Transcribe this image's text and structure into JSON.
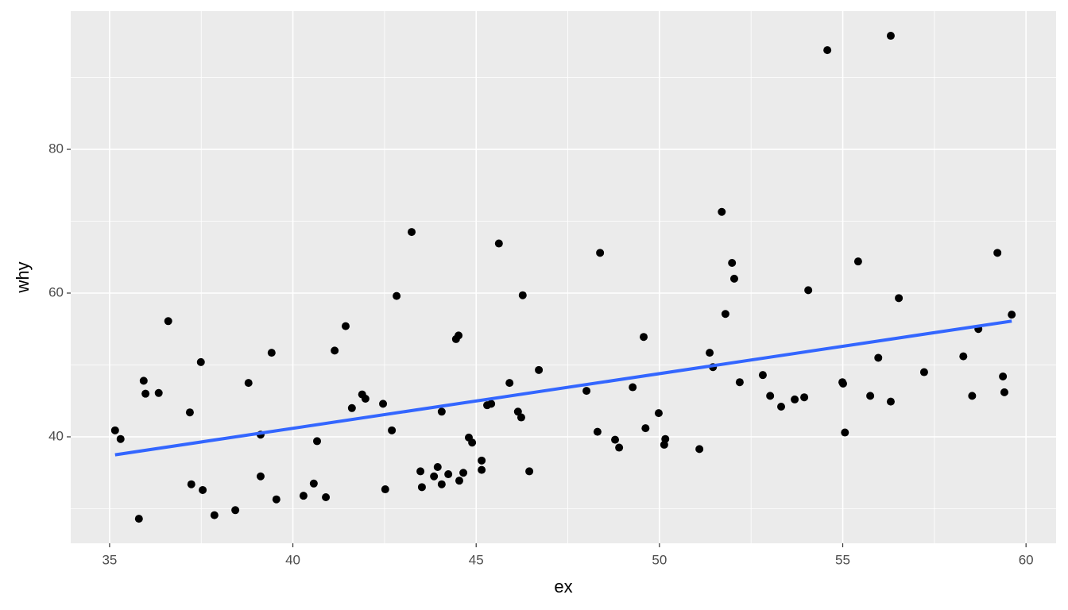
{
  "chart_data": {
    "type": "scatter",
    "xlabel": "ex",
    "ylabel": "why",
    "x": [
      35.15,
      35.3,
      35.8,
      35.93,
      35.98,
      36.34,
      36.6,
      37.19,
      37.23,
      37.49,
      37.54,
      37.86,
      38.43,
      38.79,
      39.12,
      39.12,
      39.42,
      39.55,
      40.29,
      40.57,
      40.66,
      40.9,
      41.14,
      41.44,
      41.61,
      41.89,
      41.98,
      42.46,
      42.52,
      42.7,
      42.83,
      43.24,
      43.48,
      43.52,
      43.85,
      43.95,
      44.06,
      44.06,
      44.24,
      44.45,
      44.52,
      44.54,
      44.65,
      44.8,
      44.89,
      45.15,
      45.15,
      45.3,
      45.41,
      45.62,
      45.91,
      46.14,
      46.23,
      46.27,
      46.45,
      46.71,
      48.01,
      48.31,
      48.38,
      48.79,
      48.9,
      49.27,
      49.57,
      49.62,
      49.98,
      50.16,
      50.13,
      51.09,
      51.37,
      51.46,
      51.7,
      51.8,
      51.98,
      52.04,
      52.19,
      52.82,
      53.02,
      53.32,
      53.69,
      53.95,
      54.06,
      54.58,
      54.99,
      55.01,
      55.06,
      55.42,
      55.75,
      55.97,
      56.31,
      56.31,
      56.53,
      57.22,
      58.29,
      58.53,
      58.7,
      59.22,
      59.37,
      59.41,
      59.61
    ],
    "values": [
      40.9,
      39.7,
      28.6,
      47.8,
      46.0,
      46.1,
      56.1,
      43.4,
      33.4,
      50.4,
      32.6,
      29.1,
      29.8,
      47.5,
      40.3,
      34.5,
      51.7,
      31.3,
      31.8,
      33.5,
      39.4,
      31.6,
      52.0,
      55.4,
      44.0,
      45.9,
      45.3,
      44.6,
      32.7,
      40.9,
      59.6,
      68.5,
      35.2,
      33.0,
      34.5,
      35.8,
      43.5,
      33.4,
      34.8,
      53.6,
      54.1,
      33.9,
      35.0,
      39.9,
      39.2,
      36.7,
      35.4,
      44.4,
      44.6,
      66.9,
      47.5,
      43.5,
      42.7,
      59.7,
      35.2,
      49.3,
      46.4,
      40.7,
      65.6,
      39.6,
      38.5,
      46.9,
      53.9,
      41.2,
      43.3,
      39.7,
      38.9,
      38.3,
      51.7,
      49.7,
      71.3,
      57.1,
      64.2,
      62.0,
      47.6,
      48.6,
      45.7,
      44.2,
      45.2,
      45.5,
      60.4,
      93.8,
      47.6,
      47.4,
      40.6,
      64.4,
      45.7,
      51.0,
      95.8,
      44.9,
      59.3,
      49.0,
      51.2,
      45.7,
      55.0,
      65.6,
      48.4,
      46.2,
      57.0
    ],
    "color": "#000000",
    "trend": {
      "x": [
        35.15,
        59.61
      ],
      "values": [
        37.5,
        56.1
      ],
      "color": "#3366ff"
    },
    "xlim": [
      33.94,
      60.82
    ],
    "ylim": [
      25.19,
      99.23
    ],
    "xticks": [
      35,
      40,
      45,
      50,
      55,
      60
    ],
    "yticks": [
      40,
      60,
      80
    ],
    "minor_xticks": [
      37.5,
      42.5,
      47.5,
      52.5,
      57.5
    ],
    "minor_yticks": [
      30,
      50,
      70,
      90
    ],
    "grid": true
  }
}
